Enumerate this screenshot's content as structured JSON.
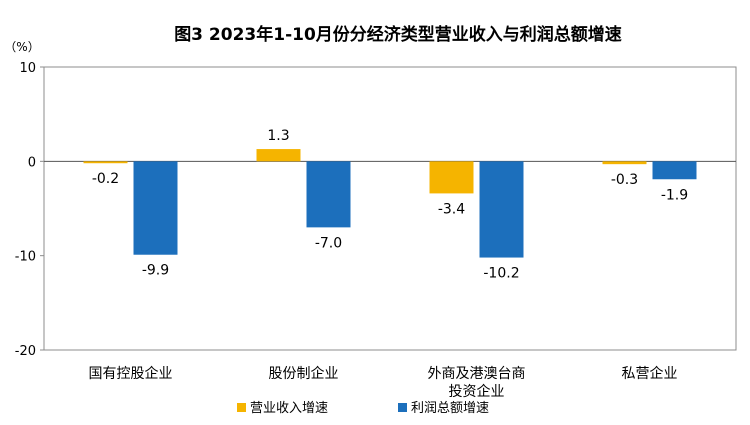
{
  "chart_data": {
    "type": "bar",
    "title": "图3  2023年1-10月份分经济类型营业收入与利润总额增速",
    "unit": "（%）",
    "categories": [
      "国有控股企业",
      "股份制企业",
      "外商及港澳台商投资企业",
      "私营企业"
    ],
    "category_lines": [
      [
        "国有控股企业"
      ],
      [
        "股份制企业"
      ],
      [
        "外商及港澳台商",
        "投资企业"
      ],
      [
        "私营企业"
      ]
    ],
    "series": [
      {
        "name": "营业收入增速",
        "color": "#F5B400",
        "values": [
          -0.2,
          1.3,
          -3.4,
          -0.3
        ]
      },
      {
        "name": "利润总额增速",
        "color": "#1C6FBC",
        "values": [
          -9.9,
          -7.0,
          -10.2,
          -1.9
        ]
      }
    ],
    "ylim": [
      -20,
      10
    ],
    "yticks": [
      10,
      0,
      -10,
      -20
    ],
    "legend_position": "bottom",
    "grid": false
  }
}
